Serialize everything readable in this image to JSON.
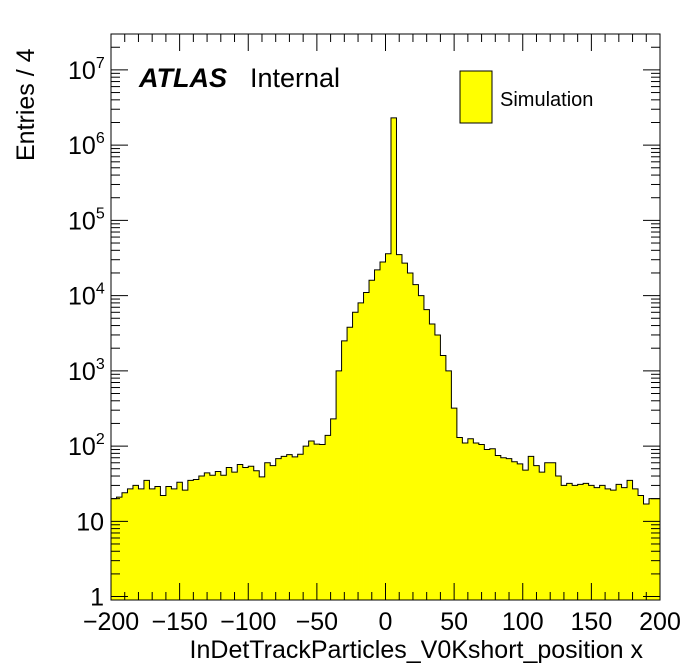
{
  "chart_data": {
    "type": "bar",
    "subtype": "step-histogram",
    "xlabel": "InDetTrackParticles_V0Kshort_position x",
    "ylabel": "Entries / 4",
    "xlim": [
      -200,
      200
    ],
    "ylim": [
      0.9,
      30000000
    ],
    "y_scale": "log",
    "bin_width": 4,
    "x_ticks": [
      "−200",
      "−150",
      "−100",
      "−50",
      "0",
      "50",
      "100",
      "150",
      "200"
    ],
    "y_ticks": [
      {
        "base": "1",
        "exp": ""
      },
      {
        "base": "10",
        "exp": ""
      },
      {
        "base": "10",
        "exp": "2"
      },
      {
        "base": "10",
        "exp": "3"
      },
      {
        "base": "10",
        "exp": "4"
      },
      {
        "base": "10",
        "exp": "5"
      },
      {
        "base": "10",
        "exp": "6"
      },
      {
        "base": "10",
        "exp": "7"
      }
    ],
    "legend": {
      "entries": [
        {
          "label": "Simulation",
          "color": "#ffff00"
        }
      ],
      "position": "top-right"
    },
    "annotations": {
      "experiment": "ATLAS",
      "status": "Internal"
    },
    "fill_color": "#ffff00",
    "line_color": "#000000",
    "bin_lows": [
      -200,
      -196,
      -192,
      -188,
      -184,
      -180,
      -176,
      -172,
      -168,
      -164,
      -160,
      -156,
      -152,
      -148,
      -144,
      -140,
      -136,
      -132,
      -128,
      -124,
      -120,
      -116,
      -112,
      -108,
      -104,
      -100,
      -96,
      -92,
      -88,
      -84,
      -80,
      -76,
      -72,
      -68,
      -64,
      -60,
      -56,
      -52,
      -48,
      -44,
      -40,
      -36,
      -32,
      -28,
      -24,
      -20,
      -16,
      -12,
      -8,
      -4,
      0,
      4,
      8,
      12,
      16,
      20,
      24,
      28,
      32,
      36,
      40,
      44,
      48,
      52,
      56,
      60,
      64,
      68,
      72,
      76,
      80,
      84,
      88,
      92,
      96,
      100,
      104,
      108,
      112,
      116,
      120,
      124,
      128,
      132,
      136,
      140,
      144,
      148,
      152,
      156,
      160,
      164,
      168,
      172,
      176,
      180,
      184,
      188,
      192,
      196
    ],
    "values": [
      20,
      21,
      24,
      27,
      30,
      27,
      35,
      27,
      29,
      22,
      29,
      27,
      33,
      26,
      35,
      36,
      40,
      44,
      41,
      46,
      41,
      52,
      45,
      57,
      52,
      54,
      47,
      39,
      60,
      55,
      68,
      73,
      77,
      72,
      78,
      100,
      117,
      106,
      105,
      139,
      230,
      1000,
      2500,
      3800,
      6000,
      8000,
      11000,
      16000,
      22000,
      28000,
      36000,
      2300000,
      35000,
      27000,
      20000,
      14000,
      10000,
      6500,
      4200,
      3000,
      1600,
      1000,
      320,
      130,
      110,
      125,
      110,
      105,
      90,
      92,
      75,
      70,
      68,
      62,
      58,
      48,
      73,
      55,
      45,
      60,
      60,
      40,
      30,
      32,
      30,
      31,
      32,
      30,
      28,
      30,
      27,
      26,
      31,
      28,
      35,
      27,
      22,
      17,
      20,
      20
    ]
  }
}
